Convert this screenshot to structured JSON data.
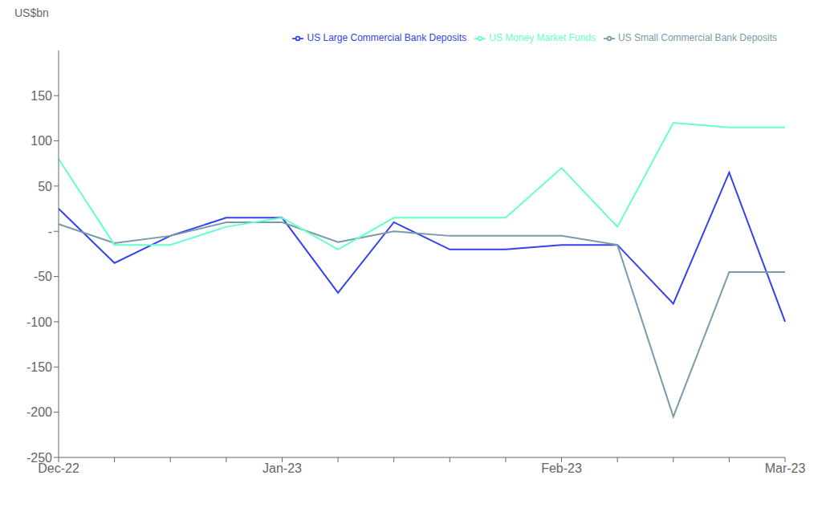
{
  "chart_data": {
    "type": "line",
    "ylabel": "US$bn",
    "categories": [
      "Dec-22",
      null,
      null,
      null,
      "Jan-23",
      null,
      null,
      null,
      null,
      "Feb-23",
      null,
      null,
      null,
      "Mar-23"
    ],
    "series": [
      {
        "name": "US Large Commercial Bank Deposits",
        "color": "#3344ee",
        "values": [
          25,
          -35,
          -5,
          15,
          15,
          -68,
          10,
          -20,
          -20,
          -15,
          -15,
          -80,
          65,
          -100
        ]
      },
      {
        "name": "US Small Commercial Bank Deposits",
        "color": "#7a9aaa",
        "values": [
          8,
          -13,
          -5,
          10,
          10,
          -12,
          0,
          -5,
          -5,
          -5,
          -15,
          -205,
          -45,
          -45
        ]
      },
      {
        "name": "US Money Market Funds",
        "color": "#66ffcc",
        "values": [
          80,
          -15,
          -15,
          5,
          15,
          -20,
          15,
          15,
          15,
          70,
          5,
          120,
          115,
          115
        ]
      }
    ],
    "ylim": [
      -250,
      200
    ],
    "yticks": [
      -250,
      -200,
      -150,
      -100,
      -50,
      {
        "value": 0,
        "label": "-"
      },
      50,
      100,
      150
    ],
    "grid": false,
    "legend": "upper right"
  }
}
